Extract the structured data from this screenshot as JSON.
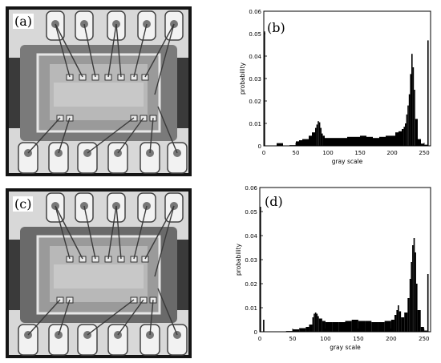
{
  "panels": {
    "a": {
      "label": "(a)"
    },
    "b": {
      "label": "(b)"
    },
    "c": {
      "label": "(c)"
    },
    "d": {
      "label": "(d)"
    }
  },
  "chart_data": [
    {
      "type": "bar",
      "panel": "(b)",
      "title": "",
      "xlabel": "gray scale",
      "ylabel": "probability",
      "xlim": [
        0,
        260
      ],
      "ylim": [
        0,
        0.06
      ],
      "xticks": [
        "0",
        "50",
        "100",
        "150",
        "200",
        "250"
      ],
      "yticks": [
        "0",
        "0.01",
        "0.02",
        "0.03",
        "0.04",
        "0.05",
        "0.06"
      ],
      "series": [
        {
          "x": [
            0,
            10,
            20,
            30,
            40,
            50,
            55,
            60,
            65,
            70,
            75,
            80,
            82,
            84,
            86,
            88,
            90,
            92,
            95,
            100,
            110,
            120,
            130,
            140,
            150,
            160,
            170,
            180,
            190,
            200,
            205,
            210,
            215,
            218,
            220,
            222,
            224,
            226,
            228,
            230,
            232,
            234,
            236,
            240,
            245,
            250,
            255
          ],
          "y": [
            0.051,
            0,
            0.0012,
            0,
            0.0003,
            0.002,
            0.0025,
            0.003,
            0.003,
            0.0045,
            0.006,
            0.008,
            0.0095,
            0.011,
            0.0105,
            0.008,
            0.0055,
            0.0045,
            0.0035,
            0.0035,
            0.0035,
            0.0035,
            0.004,
            0.004,
            0.0045,
            0.004,
            0.0035,
            0.004,
            0.0045,
            0.0045,
            0.006,
            0.0065,
            0.0075,
            0.0085,
            0.01,
            0.014,
            0.018,
            0.023,
            0.032,
            0.041,
            0.035,
            0.025,
            0.012,
            0.003,
            0.001,
            0.0005,
            0.047
          ]
        }
      ]
    },
    {
      "type": "bar",
      "panel": "(d)",
      "title": "",
      "xlabel": "gray scale",
      "ylabel": "probability",
      "xlim": [
        0,
        260
      ],
      "ylim": [
        0,
        0.06
      ],
      "xticks": [
        "0",
        "50",
        "100",
        "150",
        "200",
        "250"
      ],
      "yticks": [
        "0",
        "0.01",
        "0.02",
        "0.03",
        "0.04",
        "0.05",
        "0.06"
      ],
      "series": [
        {
          "x": [
            0,
            5,
            10,
            20,
            30,
            40,
            50,
            60,
            70,
            75,
            80,
            82,
            84,
            86,
            88,
            90,
            95,
            100,
            110,
            120,
            130,
            140,
            150,
            160,
            170,
            180,
            190,
            200,
            205,
            208,
            210,
            212,
            215,
            220,
            225,
            228,
            230,
            232,
            234,
            236,
            238,
            240,
            245,
            250,
            255
          ],
          "y": [
            0.052,
            0.005,
            0,
            0,
            0,
            0.0003,
            0.001,
            0.0015,
            0.002,
            0.003,
            0.006,
            0.0075,
            0.008,
            0.0075,
            0.0065,
            0.0055,
            0.0045,
            0.004,
            0.004,
            0.004,
            0.0045,
            0.005,
            0.0045,
            0.0045,
            0.004,
            0.004,
            0.0045,
            0.005,
            0.007,
            0.009,
            0.011,
            0.0085,
            0.006,
            0.008,
            0.014,
            0.022,
            0.029,
            0.036,
            0.039,
            0.033,
            0.02,
            0.009,
            0.002,
            0.0005,
            0.024
          ]
        }
      ]
    }
  ]
}
